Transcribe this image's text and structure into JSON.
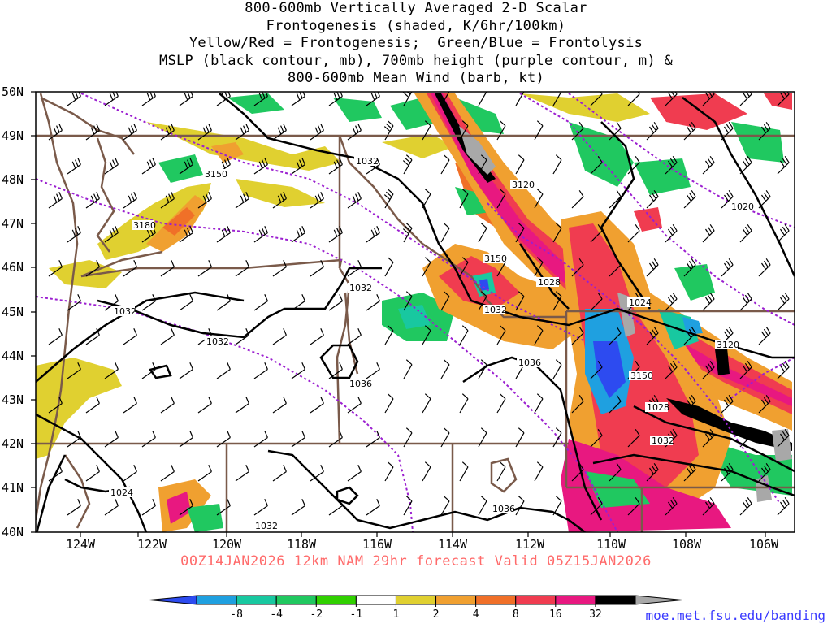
{
  "title_lines": [
    "800-600mb Vertically Averaged 2-D Scalar",
    "Frontogenesis (shaded, K/6hr/100km)",
    "Yellow/Red = Frontogenesis;  Green/Blue = Frontolysis",
    "MSLP (black contour, mb), 700mb height (purple contour, m) &",
    "800-600mb Mean Wind (barb, kt)"
  ],
  "lat_labels": [
    "50N",
    "49N",
    "48N",
    "47N",
    "46N",
    "45N",
    "44N",
    "43N",
    "42N",
    "41N",
    "40N"
  ],
  "lon_labels": [
    "124W",
    "122W",
    "120W",
    "118W",
    "116W",
    "114W",
    "112W",
    "110W",
    "108W",
    "106W"
  ],
  "forecast_text": "00Z14JAN2026 12km NAM 29hr forecast Valid 05Z15JAN2026",
  "credit": "moe.met.fsu.edu/banding",
  "colorbar": {
    "ticks": [
      "-8",
      "-4",
      "-2",
      "-1",
      "1",
      "2",
      "4",
      "8",
      "16",
      "32"
    ],
    "colors": [
      "#2d4bf0",
      "#1fa0e0",
      "#18c8a0",
      "#20c860",
      "#30d000",
      "#ffffff",
      "#e0d030",
      "#f0a030",
      "#f07028",
      "#f03c50",
      "#e81880",
      "#000000",
      "#a8a8a8"
    ]
  },
  "pressure_labels": [
    "1032",
    "1032",
    "1032",
    "1032",
    "1032",
    "1036",
    "1036",
    "1028",
    "1024",
    "1028",
    "1032",
    "1036",
    "1024",
    "1032",
    "1020"
  ],
  "height_labels": [
    "3150",
    "3180",
    "3120",
    "3150",
    "3150",
    "3120"
  ]
}
